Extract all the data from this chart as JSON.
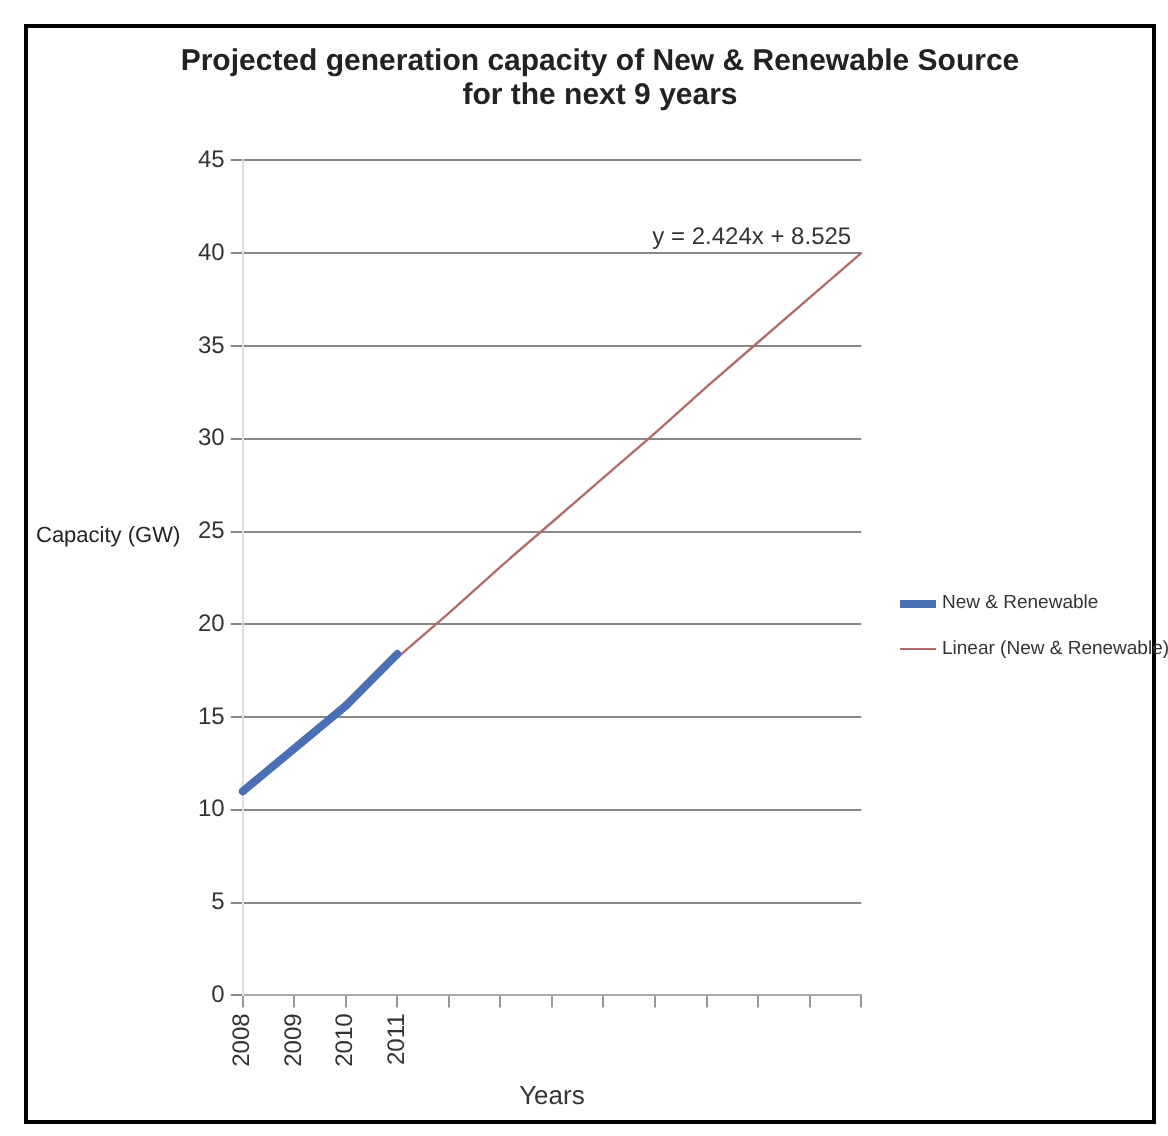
{
  "chart_data": {
    "type": "line",
    "title": "Projected generation capacity of New & Renewable Source for the next 9 years",
    "xlabel": "Years",
    "ylabel": "Capacity (GW)",
    "categories": [
      "2008",
      "2009",
      "2010",
      "2011",
      null,
      null,
      null,
      null,
      null,
      null,
      null,
      null,
      null
    ],
    "series": [
      {
        "name": "New & Renewable",
        "color": "#4a6fb5",
        "values": [
          11,
          13.3,
          15.6,
          18.4,
          null,
          null,
          null,
          null,
          null,
          null,
          null,
          null,
          null
        ]
      },
      {
        "name": "Linear (New & Renewable)",
        "color": "#b06a6a",
        "values": [
          11.0,
          13.4,
          15.8,
          18.2,
          20.6,
          23.1,
          25.5,
          27.9,
          30.3,
          32.8,
          35.2,
          37.6,
          40.0
        ]
      }
    ],
    "ylim": [
      0,
      45
    ],
    "yticks": [
      0,
      5,
      10,
      15,
      20,
      25,
      30,
      35,
      40,
      45
    ],
    "grid": "y",
    "legend": "right",
    "marker": "none",
    "annotations": [
      "y = 2.424x + 8.525"
    ]
  }
}
